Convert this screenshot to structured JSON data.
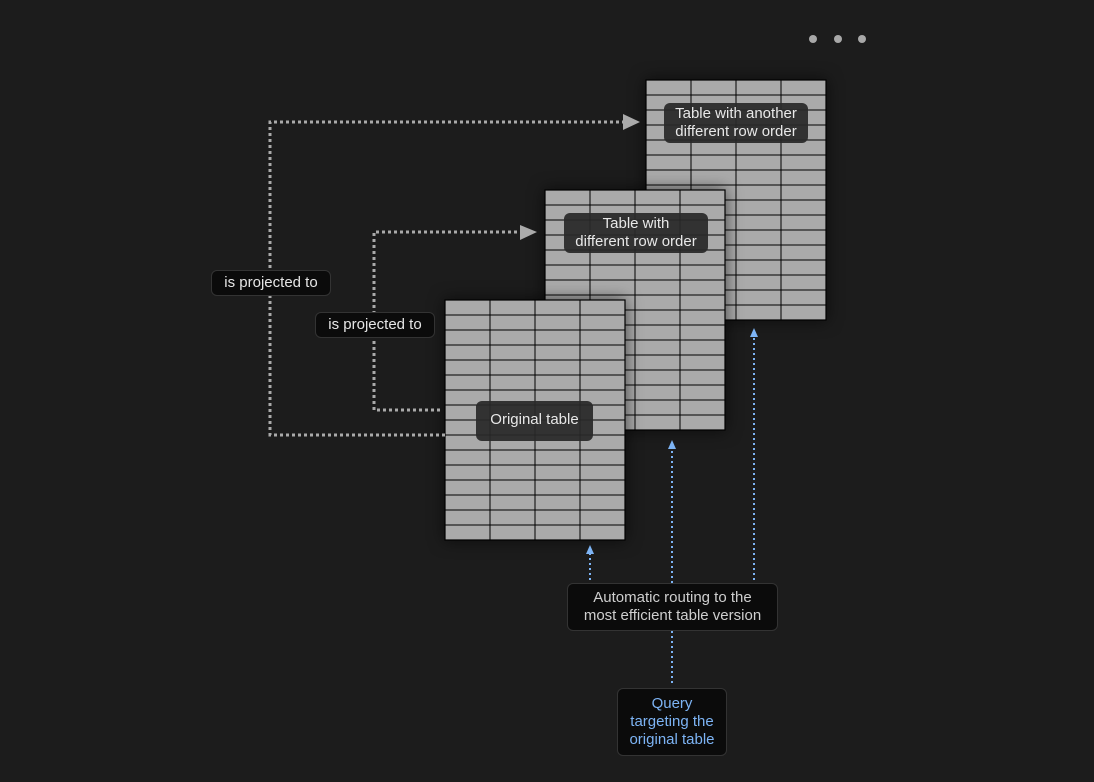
{
  "menu": {
    "icon": "more-horizontal-icon"
  },
  "tables": [
    {
      "label": "Original table"
    },
    {
      "label": "Table with\ndifferent row order"
    },
    {
      "label": "Table with another\ndifferent row order"
    }
  ],
  "edges": {
    "projection_label_outer": "is projected to",
    "projection_label_inner": "is projected to"
  },
  "routing": {
    "label": "Automatic routing to the\nmost efficient table version"
  },
  "query": {
    "label": "Query\ntargeting the\noriginal table"
  },
  "colors": {
    "table_fill": "#aaaaaa",
    "projection_line": "#aaaaaa",
    "query_line": "#7db4f5",
    "background": "#1c1c1c"
  }
}
